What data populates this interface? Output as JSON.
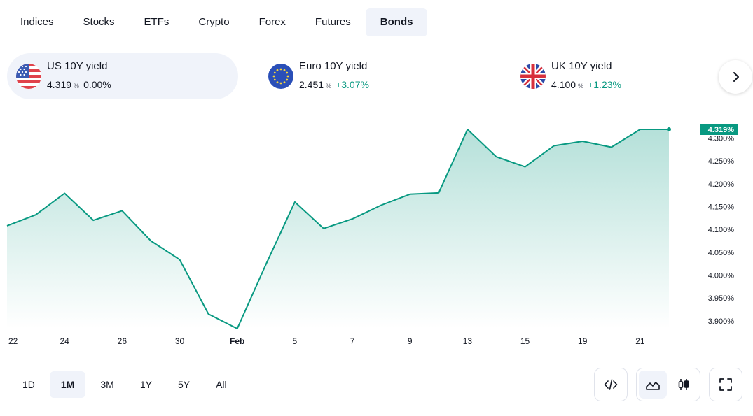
{
  "tabs": [
    {
      "label": "Indices",
      "active": false
    },
    {
      "label": "Stocks",
      "active": false
    },
    {
      "label": "ETFs",
      "active": false
    },
    {
      "label": "Crypto",
      "active": false
    },
    {
      "label": "Forex",
      "active": false
    },
    {
      "label": "Futures",
      "active": false
    },
    {
      "label": "Bonds",
      "active": true
    }
  ],
  "tickers": [
    {
      "name": "US 10Y yield",
      "value": "4.319",
      "unit": "%",
      "change": "0.00%",
      "change_color": "#131722",
      "flag_icon": "us-flag-icon",
      "active": true
    },
    {
      "name": "Euro 10Y yield",
      "value": "2.451",
      "unit": "%",
      "change": "+3.07%",
      "change_color": "#089981",
      "flag_icon": "eu-flag-icon",
      "active": false
    },
    {
      "name": "UK 10Y yield",
      "value": "4.100",
      "unit": "%",
      "change": "+1.23%",
      "change_color": "#089981",
      "flag_icon": "uk-flag-icon",
      "active": false
    }
  ],
  "next_button_icon": "chevron-right-icon",
  "ranges": [
    {
      "label": "1D",
      "active": false
    },
    {
      "label": "1M",
      "active": true
    },
    {
      "label": "3M",
      "active": false
    },
    {
      "label": "1Y",
      "active": false
    },
    {
      "label": "5Y",
      "active": false
    },
    {
      "label": "All",
      "active": false
    }
  ],
  "tools": {
    "embed_icon": "code-icon",
    "area_chart_icon": "area-chart-icon",
    "candle_chart_icon": "candlestick-icon",
    "fullscreen_icon": "fullscreen-icon",
    "active_chart_type": "area"
  },
  "colors": {
    "accent": "#089981",
    "active_bg": "#f0f3fa",
    "text": "#131722"
  },
  "chart_data": {
    "type": "area",
    "series": [
      {
        "values": [
          4.108,
          4.132,
          4.179,
          4.12,
          4.141,
          4.075,
          4.034,
          3.915,
          3.883,
          4.024,
          4.16,
          4.102,
          4.123,
          4.153,
          4.177,
          4.18,
          4.319,
          4.259,
          4.237,
          4.283,
          4.293,
          4.28,
          4.319,
          4.319
        ]
      }
    ],
    "x_tick_labels": [
      "22",
      "24",
      "26",
      "30",
      "Feb",
      "5",
      "7",
      "9",
      "13",
      "15",
      "19",
      "21"
    ],
    "x_tick_points": [
      0,
      2,
      4,
      6,
      8,
      10,
      12,
      14,
      16,
      18,
      20,
      22
    ],
    "y_ticks": [
      3.9,
      3.95,
      4.0,
      4.05,
      4.1,
      4.15,
      4.2,
      4.25,
      4.3
    ],
    "y_tick_labels": [
      "3.900%",
      "3.950%",
      "4.000%",
      "4.050%",
      "4.100%",
      "4.150%",
      "4.200%",
      "4.250%",
      "4.300%"
    ],
    "last_value_label": "4.319%",
    "ylim": [
      3.883,
      4.319
    ],
    "grid": false,
    "line_color": "#089981"
  }
}
